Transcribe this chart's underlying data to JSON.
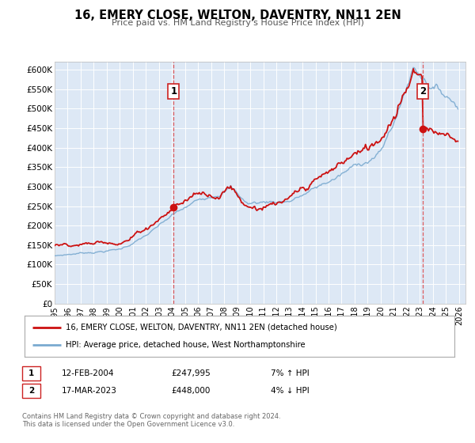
{
  "title": "16, EMERY CLOSE, WELTON, DAVENTRY, NN11 2EN",
  "subtitle": "Price paid vs. HM Land Registry's House Price Index (HPI)",
  "background_color": "#ffffff",
  "plot_bg_color": "#dde8f5",
  "grid_color": "#ffffff",
  "ylim": [
    0,
    620000
  ],
  "xlim_start": 1995.0,
  "xlim_end": 2026.5,
  "yticks": [
    0,
    50000,
    100000,
    150000,
    200000,
    250000,
    300000,
    350000,
    400000,
    450000,
    500000,
    550000,
    600000
  ],
  "ytick_labels": [
    "£0",
    "£50K",
    "£100K",
    "£150K",
    "£200K",
    "£250K",
    "£300K",
    "£350K",
    "£400K",
    "£450K",
    "£500K",
    "£550K",
    "£600K"
  ],
  "xticks": [
    1995,
    1996,
    1997,
    1998,
    1999,
    2000,
    2001,
    2002,
    2003,
    2004,
    2005,
    2006,
    2007,
    2008,
    2009,
    2010,
    2011,
    2012,
    2013,
    2014,
    2015,
    2016,
    2017,
    2018,
    2019,
    2020,
    2021,
    2022,
    2023,
    2024,
    2025,
    2026
  ],
  "price_color": "#cc1111",
  "hpi_color": "#7aaad0",
  "marker_color": "#cc1111",
  "vline_color": "#dd4444",
  "sale1_x": 2004.12,
  "sale1_y": 247995,
  "sale2_x": 2023.21,
  "sale2_y": 448000,
  "legend_line1": "16, EMERY CLOSE, WELTON, DAVENTRY, NN11 2EN (detached house)",
  "legend_line2": "HPI: Average price, detached house, West Northamptonshire",
  "table_row1_num": "1",
  "table_row1_date": "12-FEB-2004",
  "table_row1_price": "£247,995",
  "table_row1_hpi": "7% ↑ HPI",
  "table_row2_num": "2",
  "table_row2_date": "17-MAR-2023",
  "table_row2_price": "£448,000",
  "table_row2_hpi": "4% ↓ HPI",
  "footer1": "Contains HM Land Registry data © Crown copyright and database right 2024.",
  "footer2": "This data is licensed under the Open Government Licence v3.0."
}
